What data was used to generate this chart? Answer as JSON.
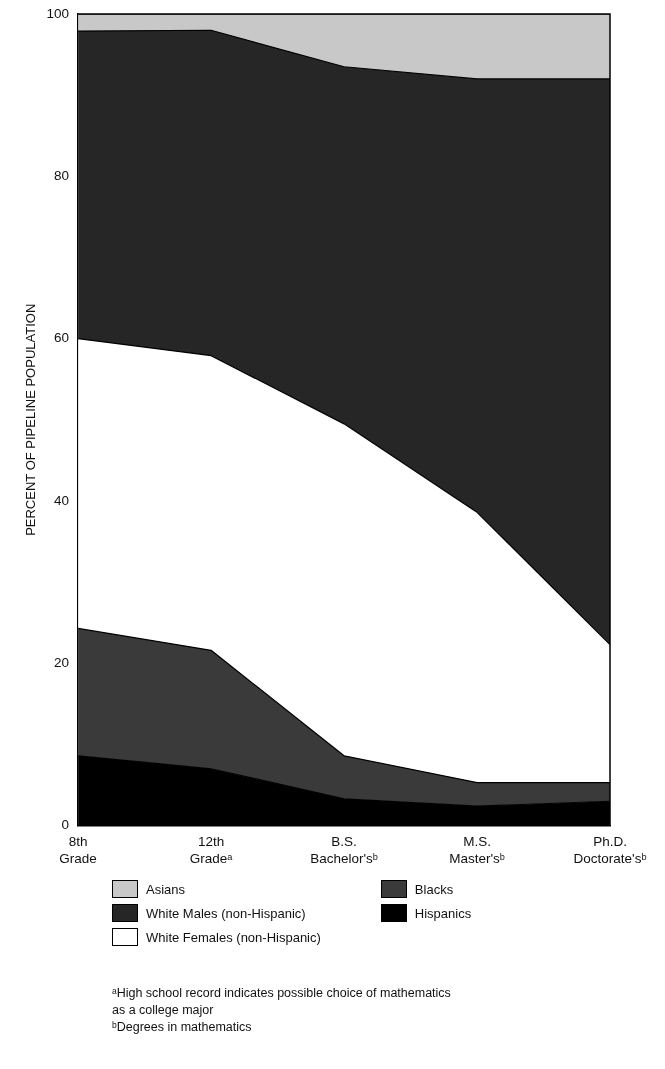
{
  "chart_data": {
    "type": "area",
    "stacked": true,
    "ylabel": "PERCENT OF PIPELINE POPULATION",
    "categories": [
      "8th\nGrade",
      "12th\nGradeᵃ",
      "B.S.\nBachelor'sᵇ",
      "M.S.\nMaster'sᵇ",
      "Ph.D.\nDoctorate'sᵇ"
    ],
    "series": [
      {
        "name": "Hispanics",
        "color": "#000000",
        "values": [
          8.6,
          7.0,
          3.3,
          2.4,
          3.0
        ]
      },
      {
        "name": "Blacks",
        "color": "#3a3a3a",
        "values": [
          15.7,
          14.6,
          5.3,
          2.9,
          2.3
        ]
      },
      {
        "name": "White Females (non-Hispanic)",
        "color": "#ffffff",
        "values": [
          35.7,
          36.3,
          40.9,
          33.3,
          17.0
        ]
      },
      {
        "name": "White Males (non-Hispanic)",
        "color": "#262626",
        "values": [
          37.9,
          40.1,
          44.0,
          53.4,
          69.7
        ]
      },
      {
        "name": "Asians",
        "color": "#c8c8c8",
        "values": [
          2.1,
          2.0,
          6.5,
          8.0,
          8.0
        ]
      }
    ],
    "ylim": [
      0,
      100
    ],
    "yticks": [
      0,
      20,
      40,
      60,
      80,
      100
    ],
    "legend": "bottom",
    "annotations": [
      "ᵃHigh school record indicates possible choice of mathematics\nas a college major",
      "ᵇDegrees in mathematics"
    ]
  }
}
